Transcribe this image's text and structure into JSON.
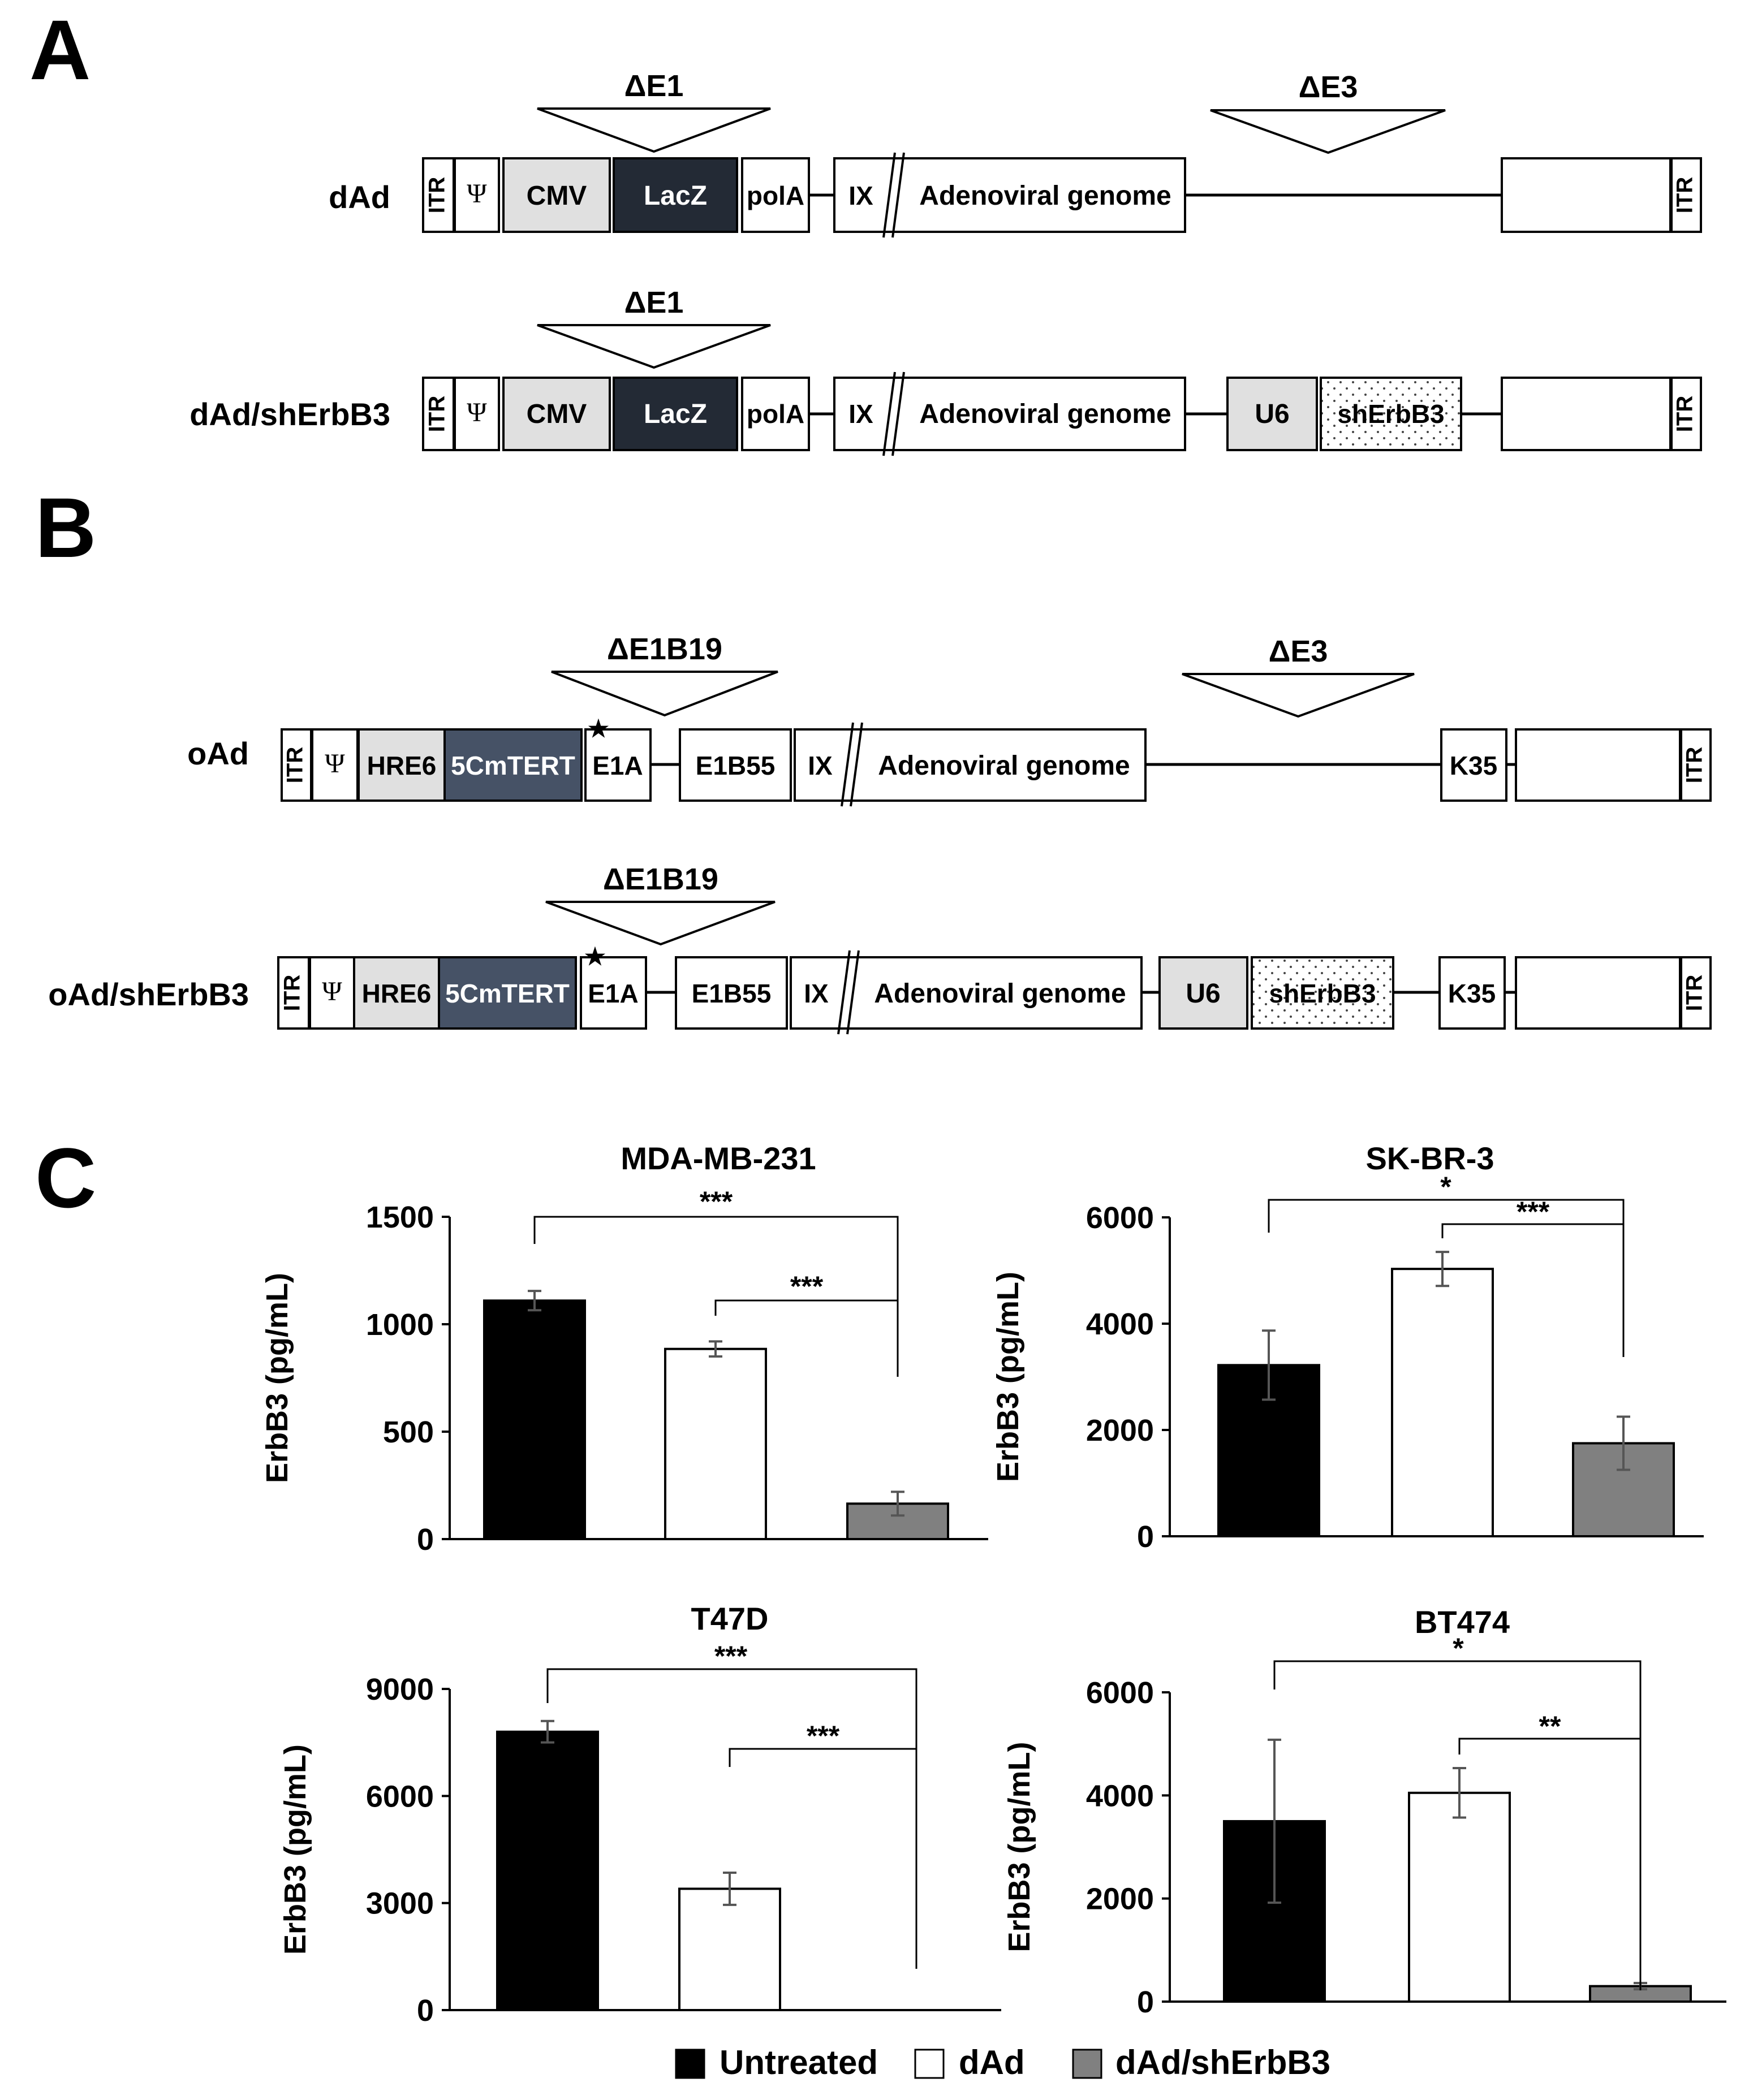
{
  "panels": {
    "a": "A",
    "b": "B",
    "c": "C"
  },
  "symbols": {
    "psi": "Ψ",
    "star": "★"
  },
  "panel_a": {
    "rows": [
      {
        "name": "dAd",
        "deletions": [
          "ΔE1",
          "ΔE3"
        ],
        "boxes": [
          "ITR",
          "CMV",
          "LacZ",
          "polA",
          "IX",
          "Adenoviral genome",
          "ITR"
        ]
      },
      {
        "name": "dAd/shErbB3",
        "deletions": [
          "ΔE1"
        ],
        "boxes": [
          "ITR",
          "CMV",
          "LacZ",
          "polA",
          "IX",
          "Adenoviral genome",
          "U6",
          "shErbB3",
          "ITR"
        ]
      }
    ]
  },
  "panel_b": {
    "rows": [
      {
        "name": "oAd",
        "deletions": [
          "ΔE1B19",
          "ΔE3"
        ],
        "boxes": [
          "ITR",
          "HRE6",
          "5CmTERT",
          "E1A",
          "E1B55",
          "IX",
          "Adenoviral genome",
          "K35",
          "ITR"
        ]
      },
      {
        "name": "oAd/shErbB3",
        "deletions": [
          "ΔE1B19"
        ],
        "boxes": [
          "ITR",
          "HRE6",
          "5CmTERT",
          "E1A",
          "E1B55",
          "IX",
          "Adenoviral genome",
          "U6",
          "shErbB3",
          "K35",
          "ITR"
        ]
      }
    ]
  },
  "colors": {
    "untreated": "#000000",
    "dAd": "#ffffff",
    "dAd_shErbB3": "#808080",
    "light_box": "#e0e0e0",
    "lacz": "#232a35",
    "tert": "#465266"
  },
  "chart_data": [
    {
      "type": "bar",
      "title": "MDA-MB-231",
      "ylabel": "ErbB3 (pg/mL)",
      "ylim": [
        0,
        1500
      ],
      "yticks": [
        "0",
        "500",
        "1000",
        "1500"
      ],
      "categories": [
        "Untreated",
        "dAd",
        "dAd/shErbB3"
      ],
      "values": [
        1110,
        885,
        165
      ],
      "errors": [
        45,
        35,
        55
      ],
      "significance": [
        "***",
        "***"
      ]
    },
    {
      "type": "bar",
      "title": "SK-BR-3",
      "ylabel": "ErbB3 (pg/mL)",
      "ylim": [
        0,
        6000
      ],
      "yticks": [
        "0",
        "2000",
        "4000",
        "6000"
      ],
      "categories": [
        "Untreated",
        "dAd",
        "dAd/shErbB3"
      ],
      "values": [
        3220,
        5030,
        1750
      ],
      "errors": [
        650,
        320,
        500
      ],
      "significance": [
        "*",
        "***"
      ]
    },
    {
      "type": "bar",
      "title": "T47D",
      "ylabel": "ErbB3 (pg/mL)",
      "ylim": [
        0,
        9000
      ],
      "yticks": [
        "0",
        "3000",
        "6000",
        "9000"
      ],
      "categories": [
        "Untreated",
        "dAd",
        "dAd/shErbB3"
      ],
      "values": [
        7800,
        3400,
        0
      ],
      "errors": [
        300,
        450,
        0
      ],
      "significance": [
        "***",
        "***"
      ]
    },
    {
      "type": "bar",
      "title": "BT474",
      "ylabel": "ErbB3 (pg/mL)",
      "ylim": [
        0,
        6000
      ],
      "yticks": [
        "0",
        "2000",
        "4000",
        "6000"
      ],
      "categories": [
        "Untreated",
        "dAd",
        "dAd/shErbB3"
      ],
      "values": [
        3500,
        4050,
        300
      ],
      "errors": [
        1580,
        480,
        60
      ],
      "significance": [
        "*",
        "**"
      ]
    }
  ],
  "legend": {
    "placement": "bottom",
    "items": [
      "Untreated",
      "dAd",
      "dAd/shErbB3"
    ]
  }
}
